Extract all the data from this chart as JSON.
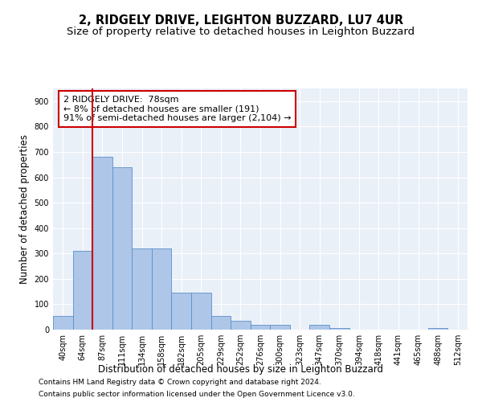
{
  "title": "2, RIDGELY DRIVE, LEIGHTON BUZZARD, LU7 4UR",
  "subtitle": "Size of property relative to detached houses in Leighton Buzzard",
  "xlabel": "Distribution of detached houses by size in Leighton Buzzard",
  "ylabel": "Number of detached properties",
  "footer_line1": "Contains HM Land Registry data © Crown copyright and database right 2024.",
  "footer_line2": "Contains public sector information licensed under the Open Government Licence v3.0.",
  "bin_labels": [
    "40sqm",
    "64sqm",
    "87sqm",
    "111sqm",
    "134sqm",
    "158sqm",
    "182sqm",
    "205sqm",
    "229sqm",
    "252sqm",
    "276sqm",
    "300sqm",
    "323sqm",
    "347sqm",
    "370sqm",
    "394sqm",
    "418sqm",
    "441sqm",
    "465sqm",
    "488sqm",
    "512sqm"
  ],
  "bar_values": [
    55,
    310,
    680,
    640,
    320,
    320,
    145,
    145,
    55,
    35,
    18,
    18,
    0,
    18,
    5,
    0,
    0,
    0,
    0,
    5,
    0
  ],
  "bar_color": "#aec6e8",
  "bar_edge_color": "#5b8fc9",
  "grid_color": "#c8d8e8",
  "vline_x": 1.5,
  "vline_color": "#cc0000",
  "annotation_text_line1": "2 RIDGELY DRIVE:  78sqm",
  "annotation_text_line2": "← 8% of detached houses are smaller (191)",
  "annotation_text_line3": "91% of semi-detached houses are larger (2,104) →",
  "ylim": [
    0,
    950
  ],
  "yticks": [
    0,
    100,
    200,
    300,
    400,
    500,
    600,
    700,
    800,
    900
  ],
  "title_fontsize": 10.5,
  "subtitle_fontsize": 9.5,
  "axis_label_fontsize": 8.5,
  "tick_fontsize": 7,
  "annotation_fontsize": 8,
  "footer_fontsize": 6.5
}
